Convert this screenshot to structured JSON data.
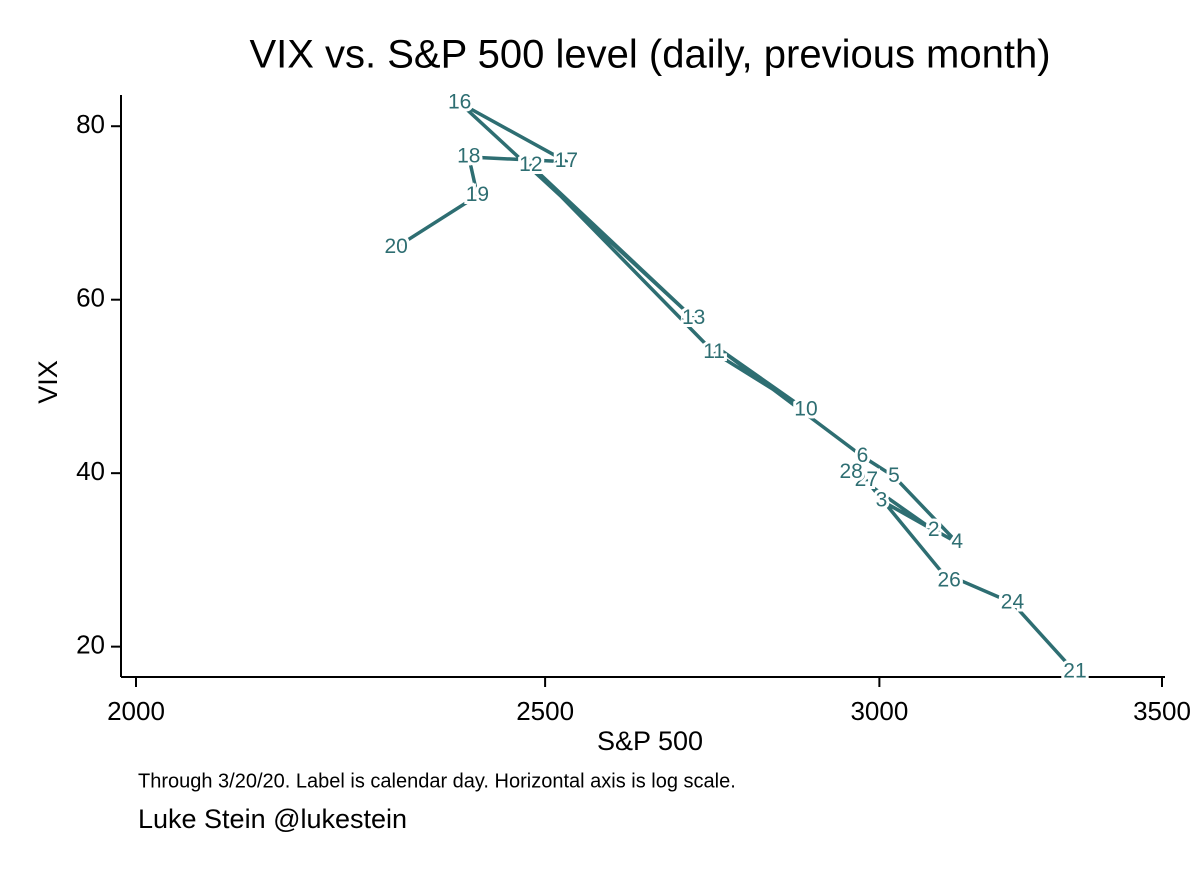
{
  "chart_data": {
    "type": "connected-scatter",
    "title": "VIX vs. S&P 500 level (daily, previous month)",
    "x_label": "S&P 500",
    "y_label": "VIX",
    "note": "Through 3/20/20. Label is calendar day. Horizontal axis is log scale.",
    "author": "Luke Stein @lukestein",
    "x_scale": "log",
    "color": "#2e6e72",
    "xlim": [
      2000,
      3500
    ],
    "xticks": [
      2000,
      2500,
      3000,
      3500
    ],
    "ylim": [
      16.5,
      83
    ],
    "yticks": [
      20,
      40,
      60,
      80
    ],
    "series": [
      {
        "x": [
          3337.75,
          3225.89,
          3128.21,
          3116.39,
          2978.76,
          2954.22,
          3090.23,
          3003.37,
          3130.12,
          3023.94,
          2972.37,
          2746.56,
          2882.23,
          2741.38,
          2480.64,
          2711.02,
          2386.13,
          2529.19,
          2398.1,
          2409.39,
          2304.92
        ],
        "values": [
          17.08,
          25.03,
          27.85,
          27.56,
          39.16,
          40.11,
          33.42,
          36.82,
          31.99,
          39.62,
          41.94,
          54.46,
          47.3,
          53.9,
          75.47,
          57.83,
          82.69,
          75.91,
          76.45,
          72.0,
          66.04
        ],
        "point_labels": [
          "21",
          "24",
          null,
          "26",
          "27",
          "28",
          "2",
          "3",
          "4",
          "5",
          "6",
          null,
          "10",
          "11",
          "12",
          "13",
          "16",
          "17",
          "18",
          "19",
          "20"
        ]
      }
    ]
  }
}
